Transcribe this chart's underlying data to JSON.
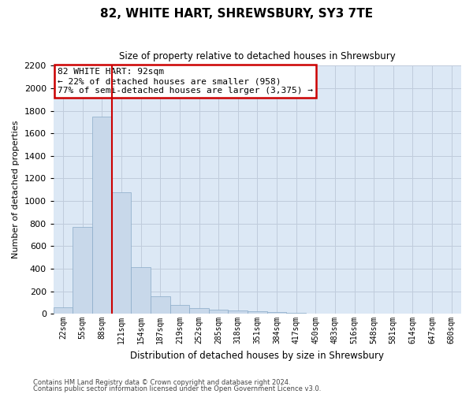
{
  "title": "82, WHITE HART, SHREWSBURY, SY3 7TE",
  "subtitle": "Size of property relative to detached houses in Shrewsbury",
  "xlabel": "Distribution of detached houses by size in Shrewsbury",
  "ylabel": "Number of detached properties",
  "bar_color": "#c8d8ea",
  "bar_edge_color": "#8aaac8",
  "categories": [
    "22sqm",
    "55sqm",
    "88sqm",
    "121sqm",
    "154sqm",
    "187sqm",
    "219sqm",
    "252sqm",
    "285sqm",
    "318sqm",
    "351sqm",
    "384sqm",
    "417sqm",
    "450sqm",
    "483sqm",
    "516sqm",
    "548sqm",
    "581sqm",
    "614sqm",
    "647sqm",
    "680sqm"
  ],
  "values": [
    60,
    770,
    1750,
    1075,
    415,
    155,
    80,
    47,
    37,
    27,
    20,
    15,
    10,
    0,
    0,
    0,
    0,
    0,
    0,
    0,
    0
  ],
  "ylim": [
    0,
    2200
  ],
  "yticks": [
    0,
    200,
    400,
    600,
    800,
    1000,
    1200,
    1400,
    1600,
    1800,
    2000,
    2200
  ],
  "property_bar_index": 2,
  "bar_width": 1.0,
  "annotation_text": "82 WHITE HART: 92sqm\n← 22% of detached houses are smaller (958)\n77% of semi-detached houses are larger (3,375) →",
  "annotation_box_facecolor": "#ffffff",
  "annotation_box_edgecolor": "#cc0000",
  "line_color": "#cc0000",
  "grid_color": "#c0ccdc",
  "plot_bg_color": "#dce8f5",
  "footer_line1": "Contains HM Land Registry data © Crown copyright and database right 2024.",
  "footer_line2": "Contains public sector information licensed under the Open Government Licence v3.0."
}
